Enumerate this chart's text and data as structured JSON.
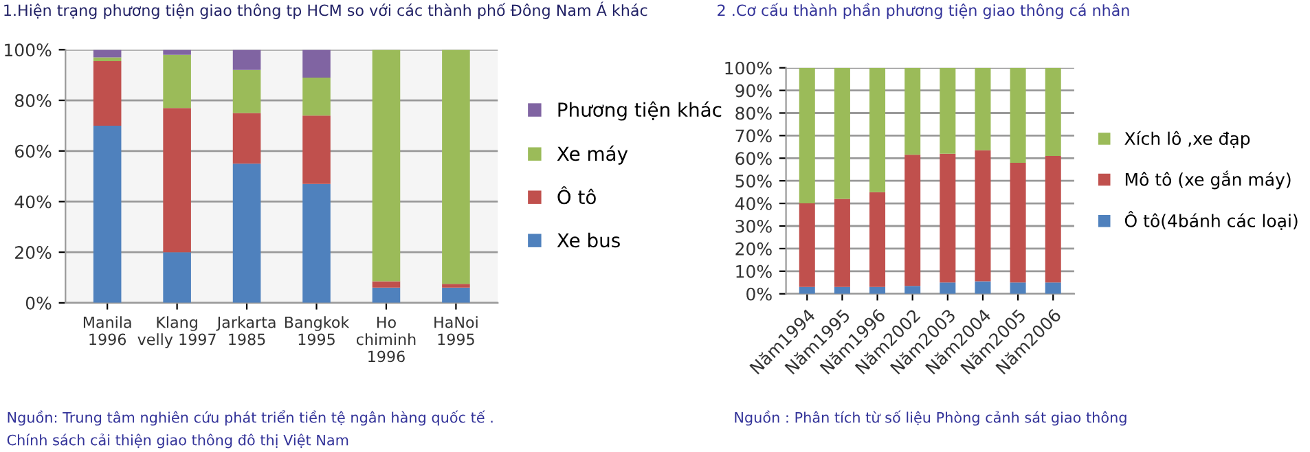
{
  "chart_data": [
    {
      "type": "bar",
      "stacked": true,
      "title": "1.Hiện trạng phương tiện giao thông tp HCM so với các thành phố Đông Nam Á khác",
      "categories": [
        "Manila\n1996",
        "Klang\nvelly 1997",
        "Jarkarta\n1985",
        "Bangkok\n1995",
        "Ho\nchiminh\n1996",
        "HaNoi\n1995"
      ],
      "series": [
        {
          "name": "Xe bus",
          "color": "#4f81bd",
          "values": [
            70,
            20,
            55,
            47,
            6,
            6
          ]
        },
        {
          "name": "Ô tô",
          "color": "#c0504d",
          "values": [
            25.5,
            57,
            20,
            27,
            2.5,
            1.5
          ]
        },
        {
          "name": "Xe máy",
          "color": "#9bbb59",
          "values": [
            1.5,
            21,
            17,
            15,
            91.5,
            92.5
          ]
        },
        {
          "name": "Phương tiện khác",
          "color": "#8064a2",
          "values": [
            3,
            2,
            8,
            11,
            0,
            0
          ]
        }
      ],
      "ylim": [
        0,
        100
      ],
      "yticks": [
        {
          "value": 0,
          "label": "0%"
        },
        {
          "value": 20,
          "label": "20%"
        },
        {
          "value": 40,
          "label": "40%"
        },
        {
          "value": 60,
          "label": "60%"
        },
        {
          "value": 80,
          "label": "80%"
        },
        {
          "value": 100,
          "label": "100%"
        }
      ],
      "grid": "y",
      "legend": "right",
      "annotations": [
        "Nguồn: Trung tâm nghiên cứu phát triển tiền tệ ngân hàng quốc tế .",
        "Chính sách cải thiện giao thông đô thị Việt Nam"
      ]
    },
    {
      "type": "bar",
      "stacked": true,
      "title": "2 .Cơ cấu thành phần phương tiện giao thông cá nhân",
      "categories": [
        "Năm1994",
        "Năm1995",
        "Năm1996",
        "Năm2002",
        "Năm2003",
        "Năm2004",
        "Năm2005",
        "Năm2006"
      ],
      "series": [
        {
          "name": "Ô tô(4bánh các loại)",
          "color": "#4f81bd",
          "values": [
            3,
            3,
            3,
            3.5,
            5,
            5.5,
            5,
            5
          ]
        },
        {
          "name": "Mô tô (xe gắn máy)",
          "color": "#c0504d",
          "values": [
            37,
            39,
            42,
            58,
            57,
            58,
            53,
            56
          ]
        },
        {
          "name": "Xích lô ,xe đạp",
          "color": "#9bbb59",
          "values": [
            60,
            58,
            55,
            38.5,
            38,
            36.5,
            42,
            39
          ]
        }
      ],
      "ylim": [
        0,
        100
      ],
      "yticks": [
        {
          "value": 0,
          "label": "0%"
        },
        {
          "value": 10,
          "label": "10%"
        },
        {
          "value": 20,
          "label": "20%"
        },
        {
          "value": 30,
          "label": "30%"
        },
        {
          "value": 40,
          "label": "40%"
        },
        {
          "value": 50,
          "label": "50%"
        },
        {
          "value": 60,
          "label": "60%"
        },
        {
          "value": 70,
          "label": "70%"
        },
        {
          "value": 80,
          "label": "80%"
        },
        {
          "value": 90,
          "label": "90%"
        },
        {
          "value": 100,
          "label": "100%"
        }
      ],
      "grid": "y",
      "legend": "right",
      "annotations": [
        "Nguồn : Phân tích từ số liệu Phòng cảnh sát giao thông"
      ]
    }
  ]
}
